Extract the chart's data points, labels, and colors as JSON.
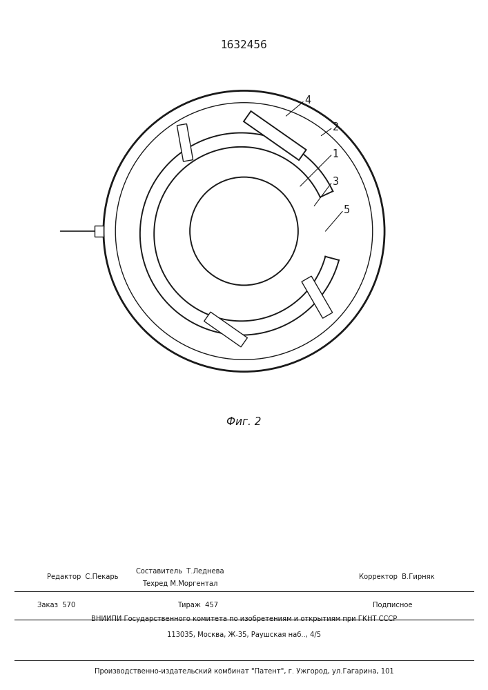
{
  "title": "1632456",
  "caption": "Фиг. 2",
  "line_color": "#1a1a1a",
  "bg_color": "#ffffff",
  "footer": {
    "col1_row1": "Редактор  С.Пекарь",
    "col2_row1a": "Составитель  Т.Леднева",
    "col2_row1b": "Техред М.Моргентал",
    "col3_row1": "Корректор  В.Гирняк",
    "zakas": "Заказ  570",
    "tirazh": "Тираж  457",
    "podpisnoe": "Подписное",
    "vniip1": "ВНИИПИ Государственного комитета по изобретениям и открытиям при ГКНТ СССР",
    "vniip2": "113035, Москва, Ж-35, Раушская наб.., 4/5",
    "proizv": "Производственно-издательский комбинат \"Патент\", г. Ужгород, ул.Гагарина, 101"
  }
}
